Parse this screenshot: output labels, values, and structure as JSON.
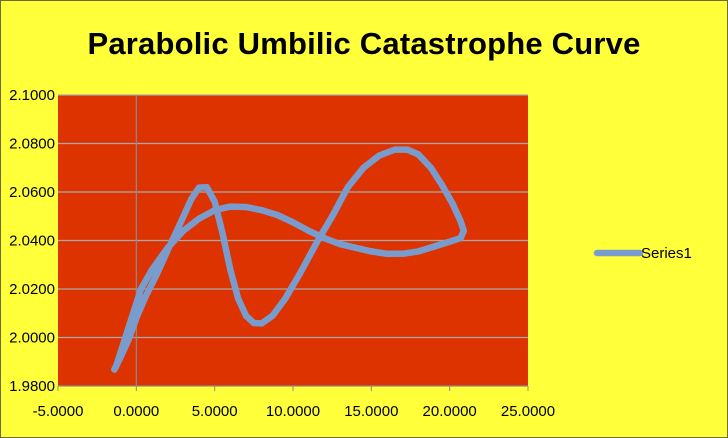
{
  "chart_data": {
    "type": "scatter",
    "title": "Parabolic Umbilic Catastrophe Curve",
    "xlabel": "",
    "ylabel": "",
    "xlim": [
      -5,
      25
    ],
    "ylim": [
      1.98,
      2.1
    ],
    "x_ticks": [
      "-5.0000",
      "0.0000",
      "5.0000",
      "10.0000",
      "15.0000",
      "20.0000",
      "25.0000"
    ],
    "y_ticks": [
      "1.9800",
      "2.0000",
      "2.0200",
      "2.0400",
      "2.0600",
      "2.0800",
      "2.1000"
    ],
    "grid": "horizontal",
    "legend_position": "right",
    "plot_background": "#dd3300",
    "chart_background": "#ffff3a",
    "series": [
      {
        "name": "Series1",
        "color": "#7a9ccd",
        "points": [
          [
            -1.4,
            1.9868
          ],
          [
            -1.0,
            1.992
          ],
          [
            -0.5,
            1.999
          ],
          [
            0.0,
            2.008
          ],
          [
            0.6,
            2.017
          ],
          [
            1.3,
            2.026
          ],
          [
            2.0,
            2.036
          ],
          [
            2.8,
            2.047
          ],
          [
            3.5,
            2.057
          ],
          [
            4.0,
            2.0618
          ],
          [
            4.5,
            2.062
          ],
          [
            5.0,
            2.056
          ],
          [
            5.5,
            2.043
          ],
          [
            6.0,
            2.028
          ],
          [
            6.5,
            2.016
          ],
          [
            7.0,
            2.009
          ],
          [
            7.5,
            2.006
          ],
          [
            8.0,
            2.0058
          ],
          [
            8.7,
            2.009
          ],
          [
            9.5,
            2.016
          ],
          [
            10.5,
            2.027
          ],
          [
            11.5,
            2.039
          ],
          [
            12.5,
            2.05
          ],
          [
            13.5,
            2.062
          ],
          [
            14.5,
            2.07
          ],
          [
            15.5,
            2.075
          ],
          [
            16.5,
            2.0775
          ],
          [
            17.3,
            2.0775
          ],
          [
            18.0,
            2.0755
          ],
          [
            18.8,
            2.07
          ],
          [
            19.5,
            2.063
          ],
          [
            20.2,
            2.055
          ],
          [
            20.7,
            2.048
          ],
          [
            20.9,
            2.044
          ],
          [
            20.7,
            2.041
          ],
          [
            20.0,
            2.0395
          ],
          [
            19.0,
            2.0375
          ],
          [
            18.0,
            2.0355
          ],
          [
            17.0,
            2.0345
          ],
          [
            16.0,
            2.0345
          ],
          [
            15.0,
            2.0355
          ],
          [
            14.0,
            2.037
          ],
          [
            13.0,
            2.0385
          ],
          [
            12.0,
            2.041
          ],
          [
            11.0,
            2.044
          ],
          [
            10.0,
            2.0475
          ],
          [
            9.0,
            2.0505
          ],
          [
            8.0,
            2.0525
          ],
          [
            7.0,
            2.0538
          ],
          [
            6.0,
            2.054
          ],
          [
            5.0,
            2.0525
          ],
          [
            4.0,
            2.049
          ],
          [
            3.0,
            2.044
          ],
          [
            2.0,
            2.037
          ],
          [
            1.0,
            2.028
          ],
          [
            0.3,
            2.02
          ],
          [
            -0.3,
            2.008
          ],
          [
            -0.8,
            1.998
          ],
          [
            -1.3,
            1.988
          ]
        ]
      }
    ]
  }
}
